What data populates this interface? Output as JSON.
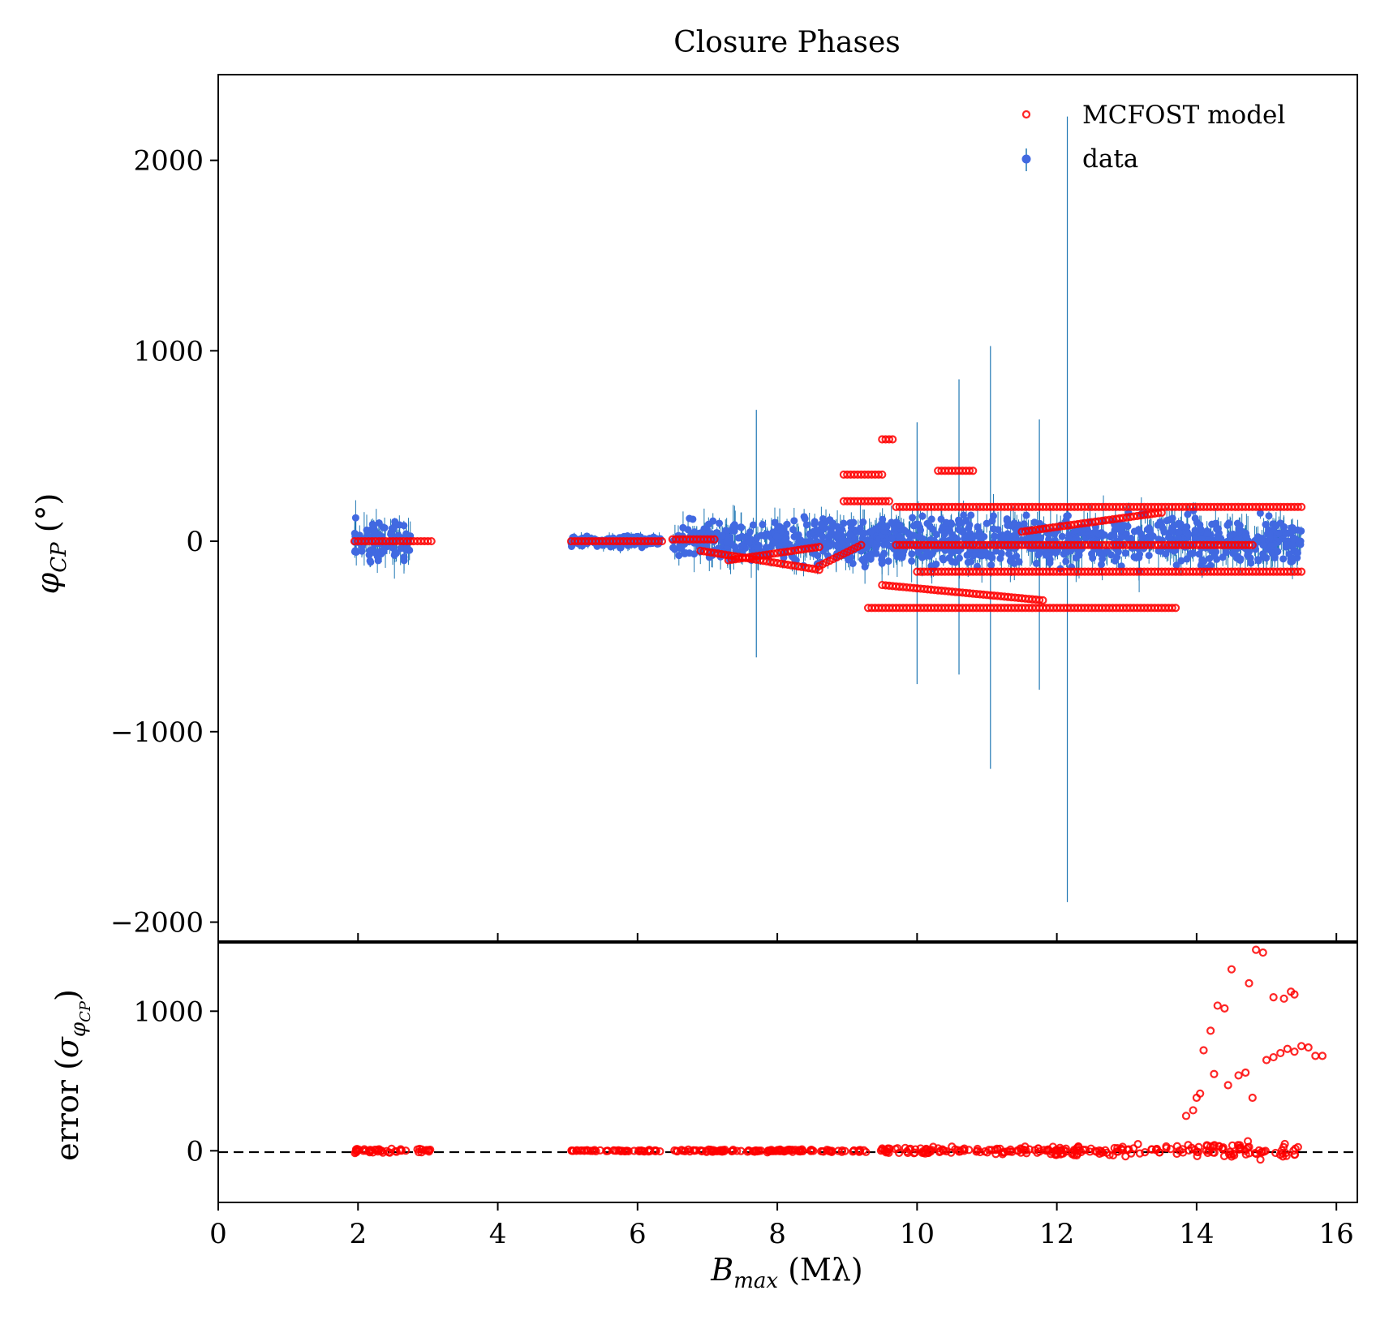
{
  "chart_data": [
    {
      "panel": "top",
      "type": "scatter",
      "title": "Closure Phases",
      "ylabel": "φ_CP (°)",
      "ylabel_display": {
        "base": "φ",
        "sub": "CP",
        "rest": " (°)"
      },
      "xlim": [
        0,
        16.3
      ],
      "ylim": [
        -2100,
        2450
      ],
      "yticks": [
        -2000,
        -1000,
        0,
        1000,
        2000
      ],
      "ytick_labels": [
        "−2000",
        "−1000",
        "0",
        "1000",
        "2000"
      ],
      "legend_position": "upper right",
      "series": [
        {
          "name": "MCFOST model",
          "marker": "open circle",
          "color": "#ff0000",
          "bands": [
            {
              "x": [
                1.95,
                3.05
              ],
              "y": 0
            },
            {
              "x": [
                5.05,
                6.35
              ],
              "y": 0
            },
            {
              "x": [
                6.5,
                7.1
              ],
              "y": 10
            },
            {
              "x": [
                6.9,
                8.6
              ],
              "y": [
                -50,
                -150
              ]
            },
            {
              "x": [
                7.3,
                8.6
              ],
              "y": [
                -100,
                -30
              ]
            },
            {
              "x": [
                8.6,
                9.2
              ],
              "y": [
                -130,
                -20
              ]
            },
            {
              "x": [
                8.95,
                9.5
              ],
              "y": 350
            },
            {
              "x": [
                8.95,
                9.6
              ],
              "y": 210
            },
            {
              "x": [
                9.5,
                9.65
              ],
              "y": 535
            },
            {
              "x": [
                9.3,
                13.7
              ],
              "y": -350
            },
            {
              "x": [
                9.7,
                15.5
              ],
              "y": 180
            },
            {
              "x": [
                9.7,
                14.8
              ],
              "y": -20
            },
            {
              "x": [
                10.0,
                15.5
              ],
              "y": -160
            },
            {
              "x": [
                10.3,
                10.8
              ],
              "y": 370
            },
            {
              "x": [
                9.5,
                11.8
              ],
              "y": [
                -230,
                -310
              ]
            },
            {
              "x": [
                11.5,
                13.5
              ],
              "y": [
                50,
                150
              ]
            }
          ]
        },
        {
          "name": "data",
          "marker": "filled circle with error bars",
          "color": "#4169e1",
          "error_color": "#1f77b4",
          "groups": [
            {
              "x": [
                1.95,
                2.75
              ],
              "y_spread": 160
            },
            {
              "x": [
                5.05,
                6.35
              ],
              "y_spread": 40
            },
            {
              "x": [
                6.5,
                9.5
              ],
              "y_spread": 160
            },
            {
              "x": [
                9.5,
                15.5
              ],
              "y_spread": 180
            }
          ],
          "notable_error_bars": [
            {
              "x": 7.7,
              "low": -610,
              "high": 690
            },
            {
              "x": 10.0,
              "low": -750,
              "high": 625
            },
            {
              "x": 10.6,
              "low": -700,
              "high": 850
            },
            {
              "x": 11.05,
              "low": -1195,
              "high": 1025
            },
            {
              "x": 12.15,
              "low": -1895,
              "high": 2230
            },
            {
              "x": 11.75,
              "low": -780,
              "high": 640
            }
          ]
        }
      ]
    },
    {
      "panel": "bottom",
      "type": "scatter",
      "xlabel": "B_max (Mλ)",
      "xlabel_display": {
        "base": "B",
        "sub": "max",
        "rest": " (Mλ)"
      },
      "ylabel": "error (σ_φCP)",
      "ylabel_display": {
        "pre": "error (",
        "base": "σ",
        "sub": "φ",
        "subsub": "CP",
        "post": ")"
      },
      "xlim": [
        0,
        16.3
      ],
      "ylim": [
        -370,
        1490
      ],
      "xticks": [
        0,
        2,
        4,
        6,
        8,
        10,
        12,
        14,
        16
      ],
      "xtick_labels": [
        "0",
        "2",
        "4",
        "6",
        "8",
        "10",
        "12",
        "14",
        "16"
      ],
      "yticks": [
        0,
        1000
      ],
      "ytick_labels": [
        "0",
        "1000"
      ],
      "reference_line": {
        "y": 0,
        "style": "dashed",
        "color": "#000000"
      },
      "series": [
        {
          "name": "MCFOST model",
          "color": "#ff0000",
          "outliers": [
            [
              13.85,
              250
            ],
            [
              13.95,
              290
            ],
            [
              14.0,
              380
            ],
            [
              14.05,
              410
            ],
            [
              14.1,
              720
            ],
            [
              14.2,
              860
            ],
            [
              14.25,
              550
            ],
            [
              14.3,
              1040
            ],
            [
              14.4,
              1020
            ],
            [
              14.45,
              470
            ],
            [
              14.5,
              1300
            ],
            [
              14.6,
              540
            ],
            [
              14.7,
              560
            ],
            [
              14.75,
              1200
            ],
            [
              14.8,
              380
            ],
            [
              14.85,
              1440
            ],
            [
              14.95,
              1420
            ],
            [
              15.0,
              650
            ],
            [
              15.1,
              670
            ],
            [
              15.1,
              1100
            ],
            [
              15.2,
              700
            ],
            [
              15.25,
              1090
            ],
            [
              15.3,
              730
            ],
            [
              15.35,
              1140
            ],
            [
              15.4,
              1120
            ],
            [
              15.4,
              710
            ],
            [
              15.5,
              750
            ],
            [
              15.6,
              740
            ],
            [
              15.7,
              680
            ],
            [
              15.8,
              680
            ]
          ]
        }
      ]
    }
  ]
}
